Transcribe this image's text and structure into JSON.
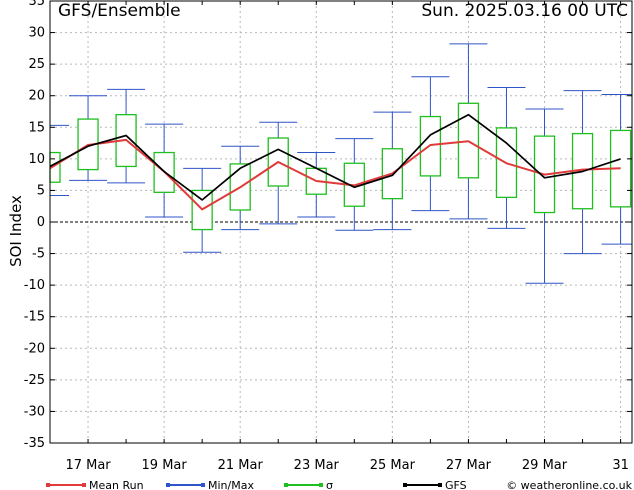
{
  "header": {
    "title": "GFS/Ensemble",
    "date": "Sun. 2025.03.16   00 UTC"
  },
  "credit": "© weatheronline.co.uk",
  "chart_data": {
    "type": "box-line",
    "ylabel": "SOI Index",
    "ylim": [
      -35,
      35
    ],
    "yticks": [
      -35,
      -30,
      -25,
      -20,
      -15,
      -10,
      -5,
      0,
      5,
      10,
      15,
      20,
      25,
      30,
      35
    ],
    "xlim": [
      0,
      15.3
    ],
    "xtick_pos": [
      1,
      3,
      5,
      7,
      9,
      11,
      13,
      15
    ],
    "xtick_labels": [
      "17 Mar",
      "19 Mar",
      "21 Mar",
      "23 Mar",
      "25 Mar",
      "27 Mar",
      "29 Mar",
      "31"
    ],
    "x": [
      0,
      1,
      2,
      3,
      4,
      5,
      6,
      7,
      8,
      9,
      10,
      11,
      12,
      13,
      14,
      15
    ],
    "legend": [
      {
        "label": "Mean Run",
        "color": "#e03a3a"
      },
      {
        "label": "Min/Max",
        "color": "#2f54c8"
      },
      {
        "label": "σ",
        "color": "#1fbf1f"
      },
      {
        "label": "GFS",
        "color": "#000000"
      }
    ],
    "series": [
      {
        "name": "Mean Run",
        "color": "#e03a3a",
        "values": [
          8.5,
          12.2,
          13.0,
          8.0,
          2.0,
          5.5,
          9.5,
          6.5,
          5.8,
          7.7,
          12.2,
          12.8,
          9.3,
          7.5,
          8.3,
          8.5
        ]
      },
      {
        "name": "GFS",
        "color": "#000000",
        "values": [
          8.8,
          12.0,
          13.7,
          8.0,
          3.5,
          8.5,
          11.5,
          8.5,
          5.5,
          7.4,
          13.8,
          17.0,
          12.5,
          7.0,
          8.0,
          10.0
        ]
      }
    ],
    "minmax": {
      "name": "Min/Max",
      "color": "#2f54c8",
      "min": [
        4.2,
        6.6,
        6.2,
        0.8,
        -4.8,
        -1.2,
        -0.3,
        0.8,
        -1.3,
        -1.2,
        1.8,
        0.5,
        -1.0,
        -9.7,
        -5.0,
        -3.5
      ],
      "max": [
        15.3,
        20.0,
        21.0,
        15.5,
        8.5,
        12.0,
        15.8,
        11.0,
        13.2,
        17.4,
        23.0,
        28.2,
        21.3,
        17.9,
        20.8,
        20.2
      ]
    },
    "sigma": {
      "name": "σ",
      "color": "#1fbf1f",
      "low": [
        6.3,
        8.3,
        8.8,
        4.7,
        -1.2,
        1.9,
        5.7,
        4.4,
        2.5,
        3.7,
        7.3,
        7.0,
        3.9,
        1.5,
        2.1,
        2.4
      ],
      "high": [
        11.0,
        16.3,
        17.0,
        11.0,
        5.0,
        9.2,
        13.3,
        8.5,
        9.3,
        11.6,
        16.7,
        18.8,
        14.9,
        13.6,
        14.0,
        14.5
      ]
    }
  }
}
